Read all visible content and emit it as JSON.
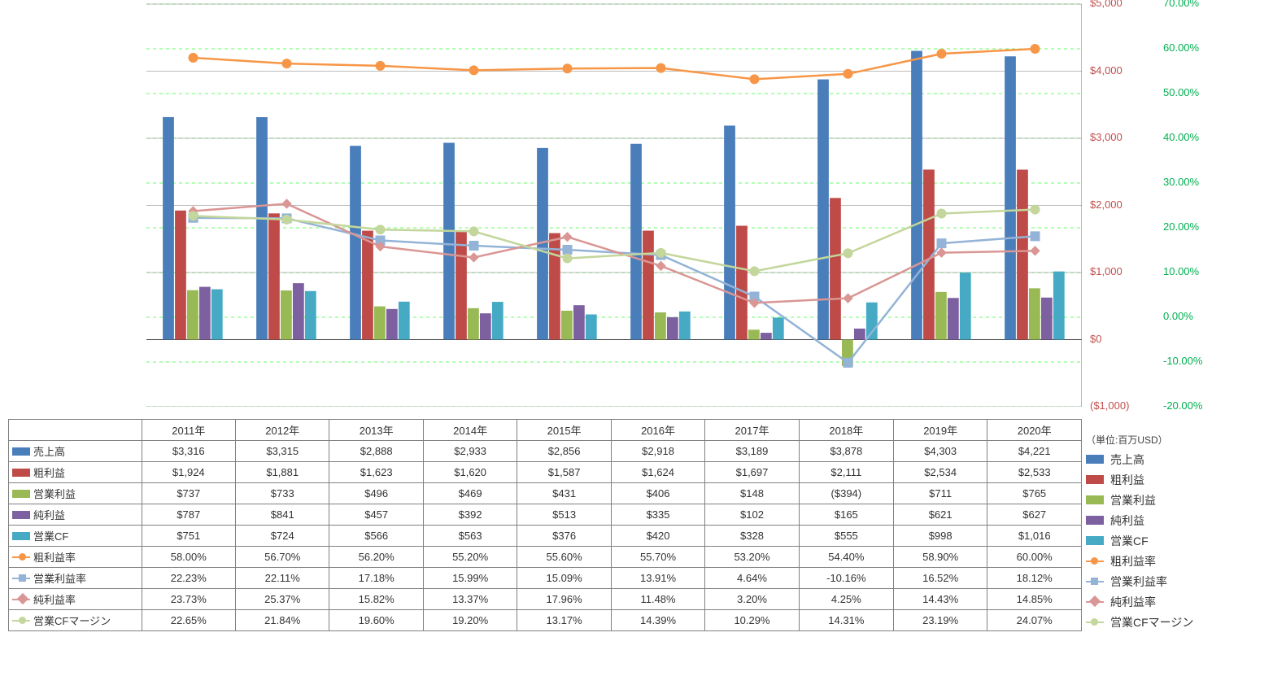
{
  "unit_label": "（単位:百万USD）",
  "years": [
    "2011年",
    "2012年",
    "2013年",
    "2014年",
    "2015年",
    "2016年",
    "2017年",
    "2018年",
    "2019年",
    "2020年"
  ],
  "primary_axis": {
    "min": -1000,
    "max": 5000,
    "step": 1000,
    "ticks": [
      "$5,000",
      "$4,000",
      "$3,000",
      "$2,000",
      "$1,000",
      "$0",
      "($1,000)"
    ],
    "tick_values": [
      5000,
      4000,
      3000,
      2000,
      1000,
      0,
      -1000
    ],
    "color": "#c0504d"
  },
  "secondary_axis": {
    "min": -20,
    "max": 70,
    "step": 10,
    "ticks": [
      "70.00%",
      "60.00%",
      "50.00%",
      "40.00%",
      "30.00%",
      "20.00%",
      "10.00%",
      "0.00%",
      "-10.00%",
      "-20.00%"
    ],
    "tick_values": [
      70,
      60,
      50,
      40,
      30,
      20,
      10,
      0,
      -10,
      -20
    ],
    "color": "#00b050",
    "gridline_color": "#00ff00",
    "gridline_dash": "4 4"
  },
  "chart": {
    "plot_bg": "#ffffff",
    "gridline_color": "#808080",
    "bar_width_ratio": 0.13,
    "bar_group_gap": 0.05
  },
  "series": [
    {
      "key": "revenue",
      "label": "売上高",
      "type": "bar",
      "axis": "primary",
      "color": "#4a7ebb",
      "values": [
        3316,
        3315,
        2888,
        2933,
        2856,
        2918,
        3189,
        3878,
        4303,
        4221
      ],
      "display": [
        "$3,316",
        "$3,315",
        "$2,888",
        "$2,933",
        "$2,856",
        "$2,918",
        "$3,189",
        "$3,878",
        "$4,303",
        "$4,221"
      ]
    },
    {
      "key": "gross_profit",
      "label": "粗利益",
      "type": "bar",
      "axis": "primary",
      "color": "#be4b48",
      "values": [
        1924,
        1881,
        1623,
        1620,
        1587,
        1624,
        1697,
        2111,
        2534,
        2533
      ],
      "display": [
        "$1,924",
        "$1,881",
        "$1,623",
        "$1,620",
        "$1,587",
        "$1,624",
        "$1,697",
        "$2,111",
        "$2,534",
        "$2,533"
      ]
    },
    {
      "key": "op_income",
      "label": "営業利益",
      "type": "bar",
      "axis": "primary",
      "color": "#98b954",
      "values": [
        737,
        733,
        496,
        469,
        431,
        406,
        148,
        -394,
        711,
        765
      ],
      "display": [
        "$737",
        "$733",
        "$496",
        "$469",
        "$431",
        "$406",
        "$148",
        "($394)",
        "$711",
        "$765"
      ]
    },
    {
      "key": "net_income",
      "label": "純利益",
      "type": "bar",
      "axis": "primary",
      "color": "#7d60a0",
      "values": [
        787,
        841,
        457,
        392,
        513,
        335,
        102,
        165,
        621,
        627
      ],
      "display": [
        "$787",
        "$841",
        "$457",
        "$392",
        "$513",
        "$335",
        "$102",
        "$165",
        "$621",
        "$627"
      ]
    },
    {
      "key": "op_cf",
      "label": "営業CF",
      "type": "bar",
      "axis": "primary",
      "color": "#46aac5",
      "values": [
        751,
        724,
        566,
        563,
        376,
        420,
        328,
        555,
        998,
        1016
      ],
      "display": [
        "$751",
        "$724",
        "$566",
        "$563",
        "$376",
        "$420",
        "$328",
        "$555",
        "$998",
        "$1,016"
      ]
    },
    {
      "key": "gross_margin",
      "label": "粗利益率",
      "type": "line",
      "axis": "secondary",
      "color": "#f79646",
      "marker": "circle",
      "values": [
        58.0,
        56.7,
        56.2,
        55.2,
        55.6,
        55.7,
        53.2,
        54.4,
        58.9,
        60.0
      ],
      "display": [
        "58.00%",
        "56.70%",
        "56.20%",
        "55.20%",
        "55.60%",
        "55.70%",
        "53.20%",
        "54.40%",
        "58.90%",
        "60.00%"
      ]
    },
    {
      "key": "op_margin",
      "label": "営業利益率",
      "type": "line",
      "axis": "secondary",
      "color": "#93b3d7",
      "marker": "square",
      "values": [
        22.23,
        22.11,
        17.18,
        15.99,
        15.09,
        13.91,
        4.64,
        -10.16,
        16.52,
        18.12
      ],
      "display": [
        "22.23%",
        "22.11%",
        "17.18%",
        "15.99%",
        "15.09%",
        "13.91%",
        "4.64%",
        "-10.16%",
        "16.52%",
        "18.12%"
      ]
    },
    {
      "key": "net_margin",
      "label": "純利益率",
      "type": "line",
      "axis": "secondary",
      "color": "#d99694",
      "marker": "diamond",
      "values": [
        23.73,
        25.37,
        15.82,
        13.37,
        17.96,
        11.48,
        3.2,
        4.25,
        14.43,
        14.85
      ],
      "display": [
        "23.73%",
        "25.37%",
        "15.82%",
        "13.37%",
        "17.96%",
        "11.48%",
        "3.20%",
        "4.25%",
        "14.43%",
        "14.85%"
      ]
    },
    {
      "key": "cf_margin",
      "label": "営業CFマージン",
      "type": "line",
      "axis": "secondary",
      "color": "#c3d69b",
      "marker": "circle",
      "values": [
        22.65,
        21.84,
        19.6,
        19.2,
        13.17,
        14.39,
        10.29,
        14.31,
        23.19,
        24.07
      ],
      "display": [
        "22.65%",
        "21.84%",
        "19.60%",
        "19.20%",
        "13.17%",
        "14.39%",
        "10.29%",
        "14.31%",
        "23.19%",
        "24.07%"
      ]
    }
  ]
}
